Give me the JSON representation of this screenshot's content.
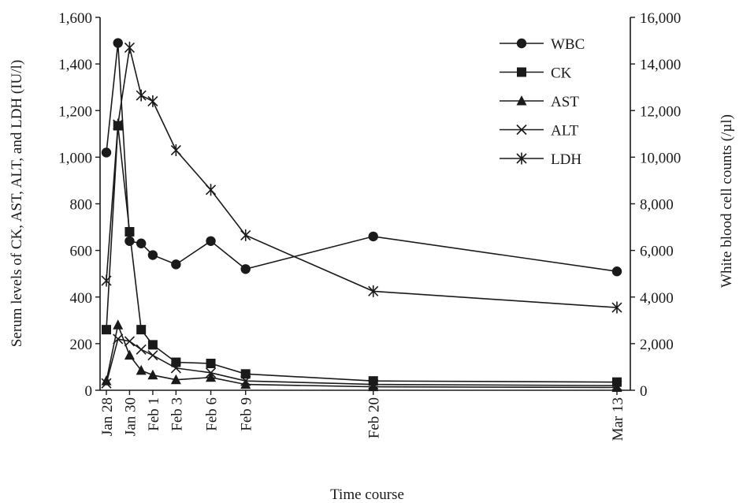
{
  "chart_data": {
    "type": "line",
    "xlabel": "Time course",
    "ylabel_left": "Serum levels of CK, AST, ALT, and LDH (IU/l)",
    "ylabel_right": "White blood cell counts (/µl)",
    "ylim_left": [
      0,
      1600
    ],
    "ylim_right": [
      0,
      16000
    ],
    "yticks_left": [
      "0",
      "200",
      "400",
      "600",
      "800",
      "1,000",
      "1,200",
      "1,400",
      "1,600"
    ],
    "yticks_right": [
      "0",
      "2,000",
      "4,000",
      "6,000",
      "8,000",
      "10,000",
      "12,000",
      "14,000",
      "16,000"
    ],
    "x_date_range": [
      "Jan 28",
      "Mar 13"
    ],
    "xtick_labels": [
      {
        "label": "Jan 28",
        "date": "Jan 28"
      },
      {
        "label": "Jan 30",
        "date": "Jan 30"
      },
      {
        "label": "Feb 1",
        "date": "Feb 1"
      },
      {
        "label": "Feb 3",
        "date": "Feb 3"
      },
      {
        "label": "Feb 6",
        "date": "Feb 6"
      },
      {
        "label": "Feb 9",
        "date": "Feb 9"
      },
      {
        "label": "Feb 20",
        "date": "Feb 20"
      },
      {
        "label": "Mar 13",
        "date": "Mar 13"
      }
    ],
    "grid": false,
    "legend_position": "top-right",
    "color": "#1a1a1a",
    "series": [
      {
        "name": "WBC",
        "axis": "right",
        "marker": "circle",
        "x": [
          "Jan 28",
          "Jan 29",
          "Jan 30",
          "Jan 31",
          "Feb 1",
          "Feb 3",
          "Feb 6",
          "Feb 9",
          "Feb 20",
          "Mar 13"
        ],
        "y": [
          10200,
          14900,
          6400,
          6300,
          5800,
          5400,
          6400,
          5200,
          6600,
          5100
        ]
      },
      {
        "name": "CK",
        "axis": "left",
        "marker": "square",
        "x": [
          "Jan 28",
          "Jan 29",
          "Jan 30",
          "Jan 31",
          "Feb 1",
          "Feb 3",
          "Feb 6",
          "Feb 9",
          "Feb 20",
          "Mar 13"
        ],
        "y": [
          260,
          1135,
          680,
          260,
          195,
          120,
          115,
          70,
          40,
          35
        ]
      },
      {
        "name": "AST",
        "axis": "left",
        "marker": "triangle",
        "x": [
          "Jan 28",
          "Jan 29",
          "Jan 30",
          "Jan 31",
          "Feb 1",
          "Feb 3",
          "Feb 6",
          "Feb 9",
          "Feb 20",
          "Mar 13"
        ],
        "y": [
          40,
          280,
          150,
          85,
          65,
          45,
          55,
          25,
          15,
          12
        ]
      },
      {
        "name": "ALT",
        "axis": "left",
        "marker": "x",
        "x": [
          "Jan 28",
          "Jan 29",
          "Jan 30",
          "Jan 31",
          "Feb 1",
          "Feb 3",
          "Feb 6",
          "Feb 9",
          "Feb 20",
          "Mar 13"
        ],
        "y": [
          30,
          220,
          210,
          175,
          150,
          95,
          75,
          40,
          25,
          20
        ]
      },
      {
        "name": "LDH",
        "axis": "left",
        "marker": "asterisk",
        "x": [
          "Jan 28",
          "Jan 29",
          "Jan 30",
          "Jan 31",
          "Feb 1",
          "Feb 3",
          "Feb 6",
          "Feb 9",
          "Feb 20",
          "Mar 13"
        ],
        "y": [
          470,
          1140,
          1470,
          1265,
          1240,
          1030,
          860,
          665,
          425,
          355
        ]
      }
    ]
  }
}
